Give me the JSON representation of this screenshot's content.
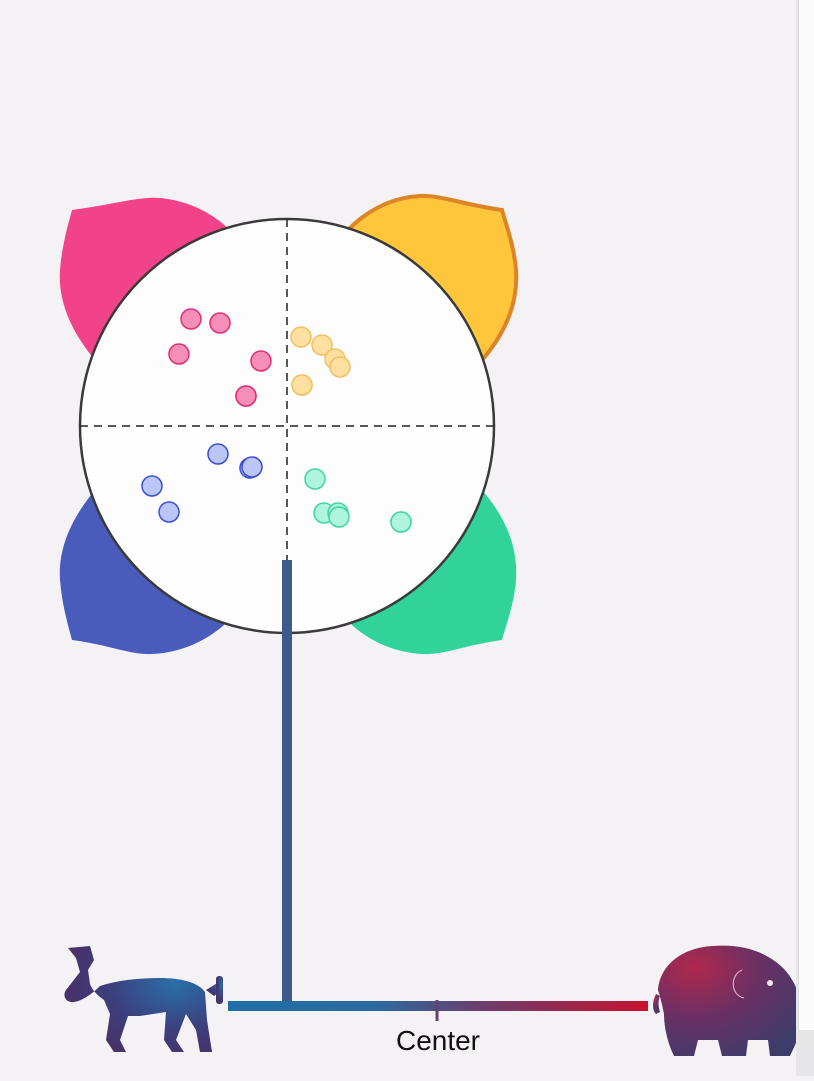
{
  "compass": {
    "quadrants": [
      {
        "name": "top-left",
        "color": "#f2428a"
      },
      {
        "name": "top-right",
        "color": "#ffc63b",
        "outline": "#dd8426",
        "selected": true
      },
      {
        "name": "bottom-left",
        "color": "#4a5cbb"
      },
      {
        "name": "bottom-right",
        "color": "#31d39b"
      }
    ],
    "stem_color": "#3d5a8a"
  },
  "points": {
    "top-left": {
      "fill": "#f58fb8",
      "stroke": "#e02e74",
      "count": 6
    },
    "top-right": {
      "fill": "#ffe0a0",
      "stroke": "#f0c060",
      "count": 6
    },
    "bottom-left": {
      "fill": "#bcc6f6",
      "stroke": "#3a4fd0",
      "count": 5
    },
    "bottom-right": {
      "fill": "#aff5de",
      "stroke": "#3fd6a1",
      "count": 6
    }
  },
  "spectrum": {
    "center_label": "Center",
    "left_color": "#1f6fa6",
    "mid_color": "#6a3e6e",
    "right_color": "#c9112f",
    "left_icon": "donkey-icon",
    "right_icon": "elephant-icon"
  }
}
